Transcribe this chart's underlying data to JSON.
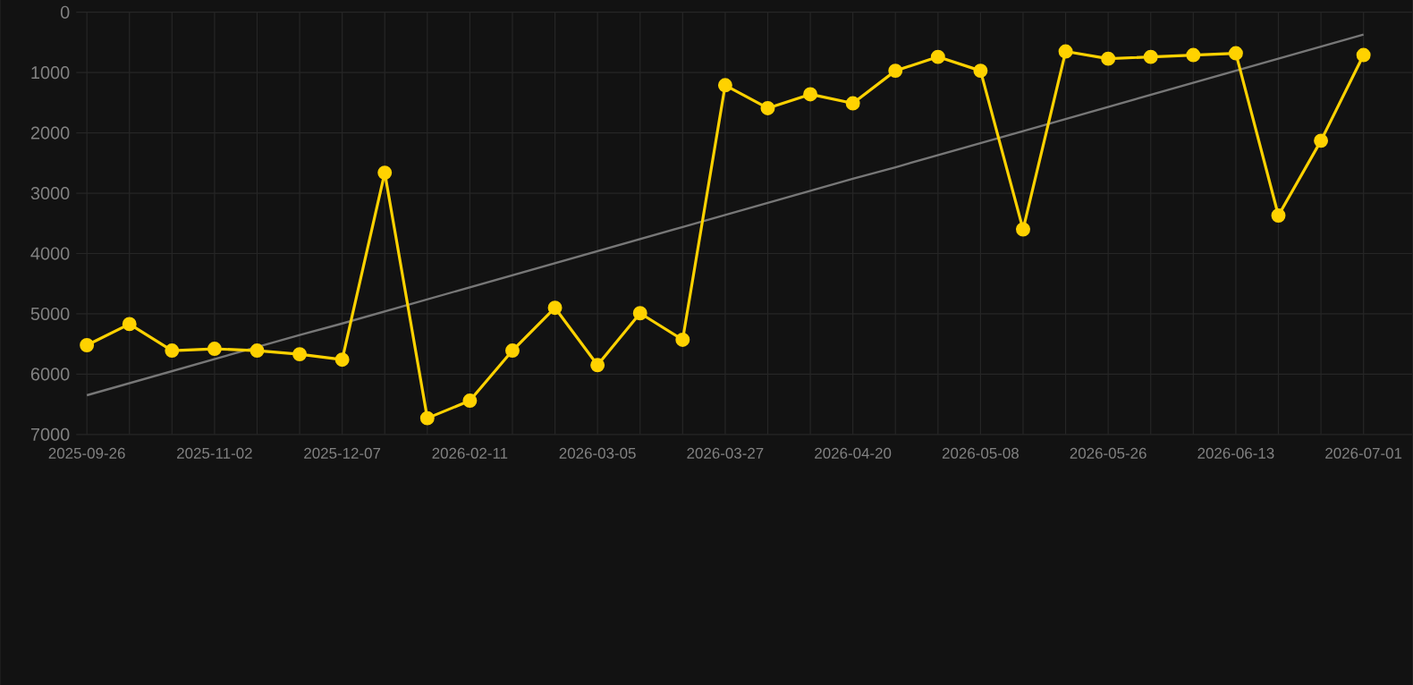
{
  "chart_data": {
    "type": "line",
    "categories": [
      "2025-09-26",
      null,
      null,
      "2025-11-02",
      null,
      null,
      "2025-12-07",
      null,
      null,
      "2026-02-11",
      null,
      null,
      "2026-03-05",
      null,
      null,
      "2026-03-27",
      null,
      null,
      "2026-04-20",
      null,
      null,
      "2026-05-08",
      null,
      null,
      "2026-05-26",
      null,
      null,
      "2026-06-13",
      null,
      null,
      "2026-07-01"
    ],
    "series": [
      {
        "color": "#ffd200",
        "marker": "circle",
        "values": [
          5520,
          5170,
          5610,
          5580,
          5610,
          5670,
          5760,
          2660,
          6730,
          6440,
          5610,
          4900,
          5850,
          4990,
          5430,
          1210,
          1590,
          1360,
          1510,
          970,
          740,
          970,
          3600,
          650,
          770,
          740,
          710,
          680,
          3370,
          2130,
          710
        ]
      },
      {
        "type": "line",
        "color": "#777777",
        "marker": "none",
        "values": [
          6350,
          6150,
          5950,
          5750,
          5550,
          5350,
          5160,
          4960,
          4760,
          4560,
          4360,
          4160,
          3960,
          3760,
          3560,
          3360,
          3160,
          2960,
          2760,
          2570,
          2370,
          2170,
          1970,
          1770,
          1570,
          1370,
          1170,
          970,
          770,
          570,
          370
        ]
      }
    ],
    "ylim": [
      7000,
      0
    ],
    "yticks": [
      0,
      1000,
      2000,
      3000,
      4000,
      5000,
      6000,
      7000
    ],
    "grid": true,
    "line_style": "solid"
  }
}
